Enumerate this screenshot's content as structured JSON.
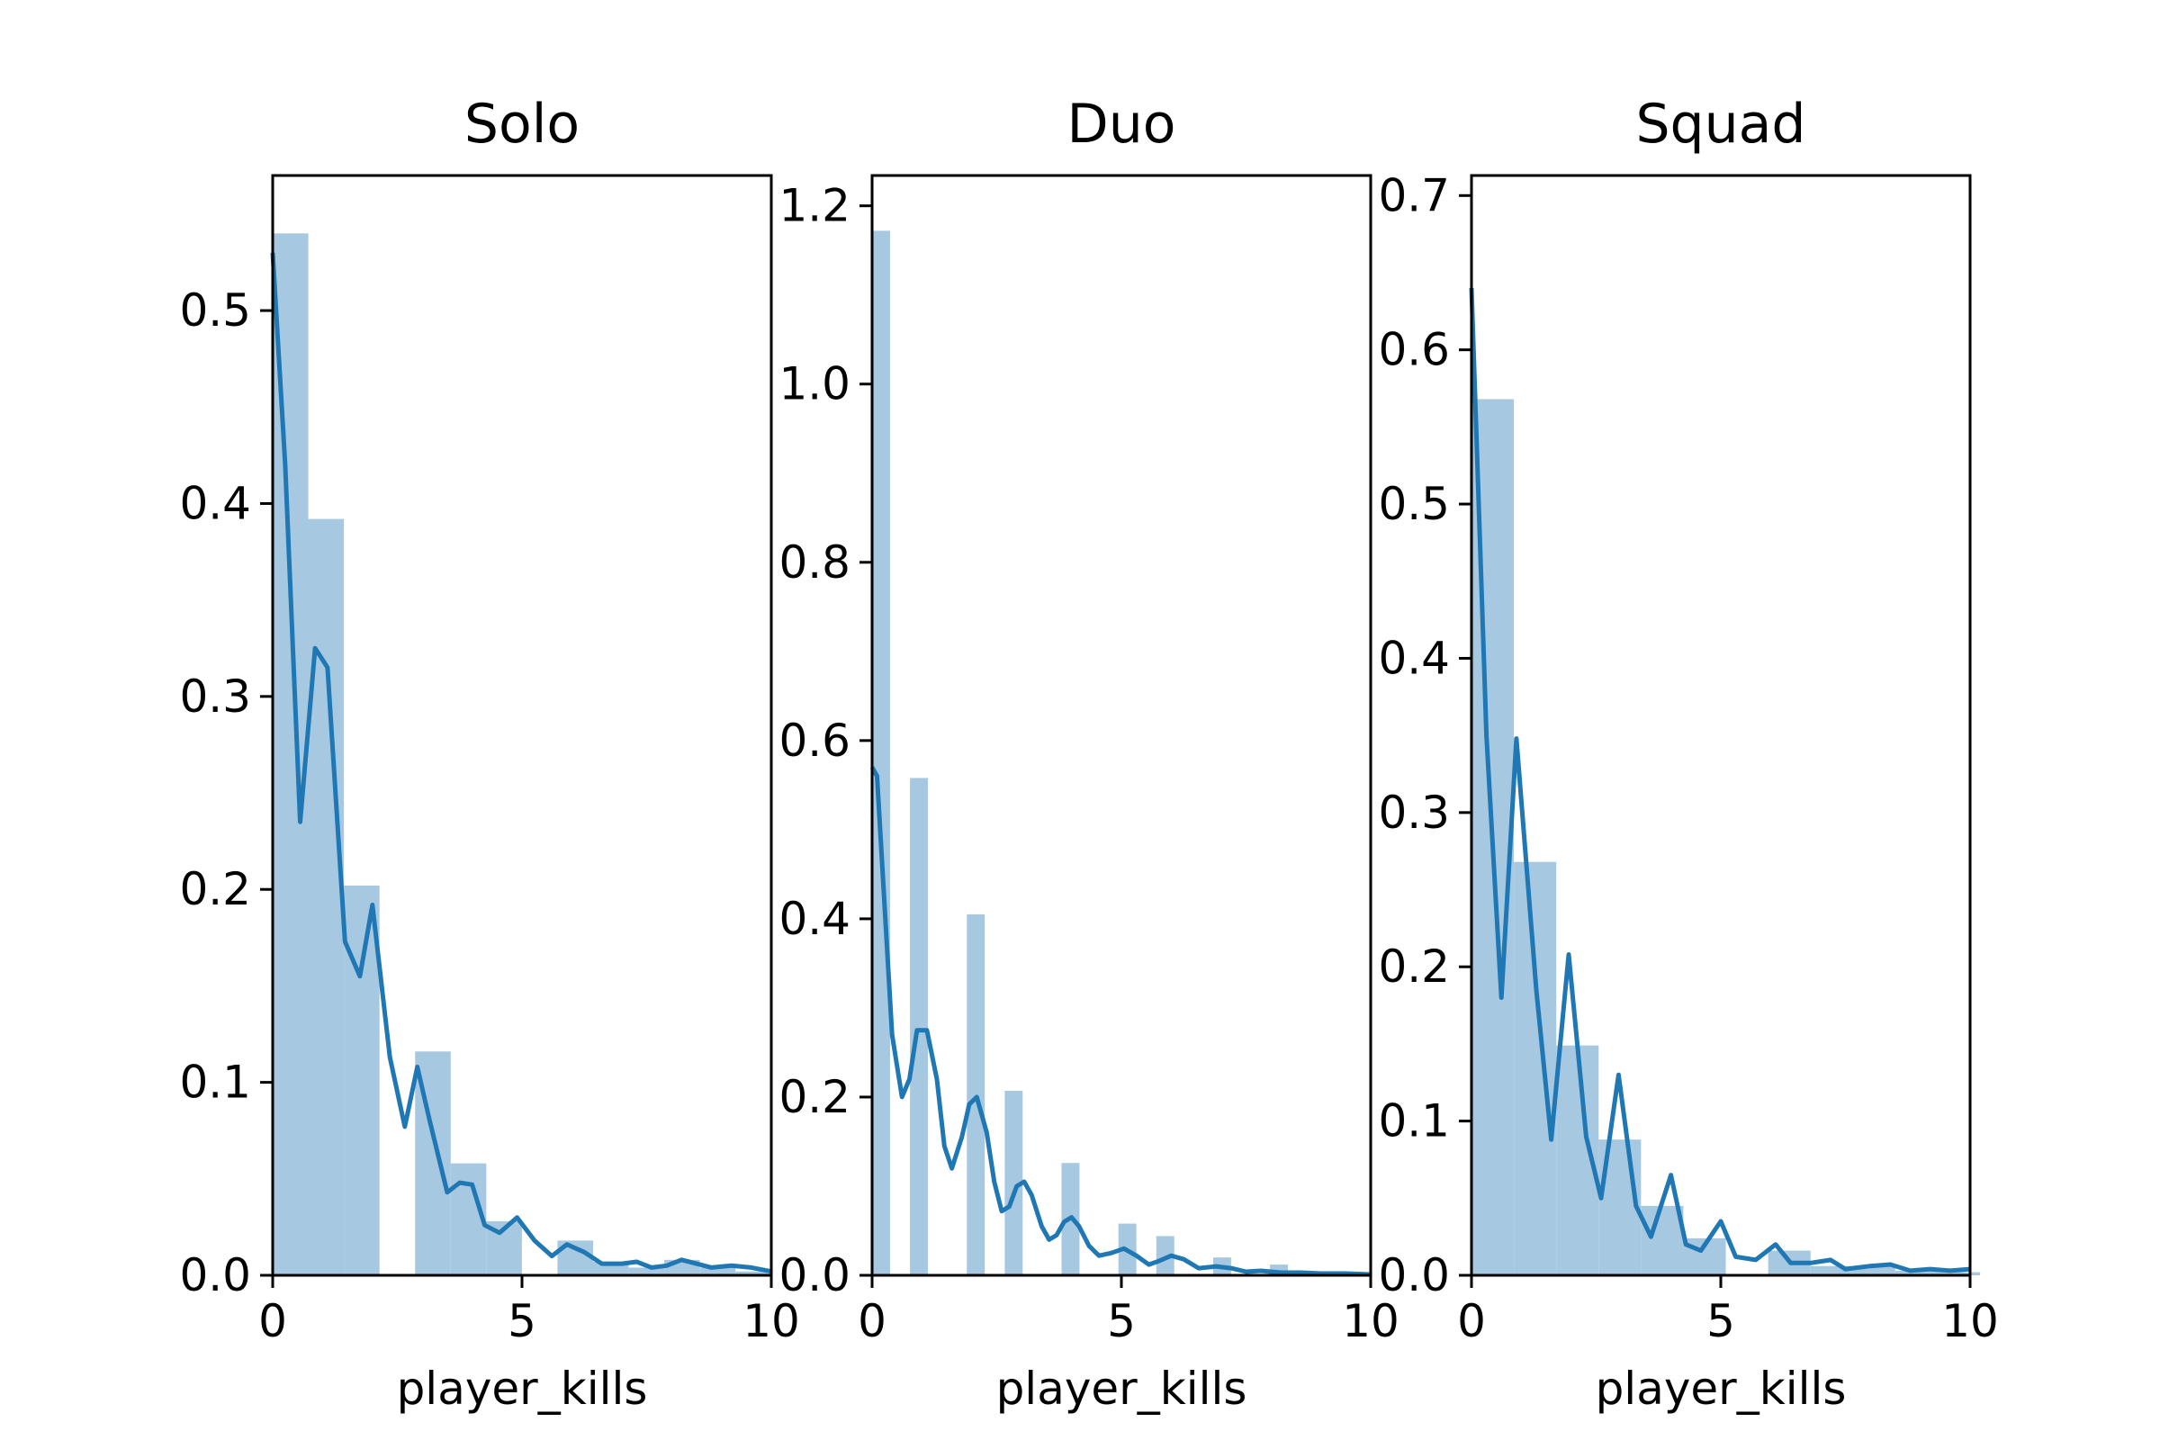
{
  "colors": {
    "hist_fill": "#a6c8e1",
    "kde_line": "#1f77b4",
    "axis": "#000000",
    "background": "#ffffff"
  },
  "chart_data": [
    {
      "type": "bar",
      "title": "Solo",
      "xlabel": "player_kills",
      "ylabel": "",
      "xlim": [
        0,
        10
      ],
      "ylim": [
        0,
        0.57
      ],
      "xticks": [
        0,
        5,
        10
      ],
      "xtick_labels": [
        "0",
        "5",
        "10"
      ],
      "yticks": [
        0.0,
        0.1,
        0.2,
        0.3,
        0.4,
        0.5
      ],
      "ytick_labels": [
        "0.0",
        "0.1",
        "0.2",
        "0.3",
        "0.4",
        "0.5"
      ],
      "grid": false,
      "bin_width": 0.714,
      "bars": [
        {
          "x": 0.0,
          "value": 0.54
        },
        {
          "x": 0.714,
          "value": 0.392
        },
        {
          "x": 1.428,
          "value": 0.202
        },
        {
          "x": 2.142,
          "value": 0.0
        },
        {
          "x": 2.856,
          "value": 0.116
        },
        {
          "x": 3.57,
          "value": 0.058
        },
        {
          "x": 4.284,
          "value": 0.028
        },
        {
          "x": 4.998,
          "value": 0.0
        },
        {
          "x": 5.712,
          "value": 0.018
        },
        {
          "x": 6.426,
          "value": 0.007
        },
        {
          "x": 7.14,
          "value": 0.004
        },
        {
          "x": 7.854,
          "value": 0.008
        },
        {
          "x": 8.568,
          "value": 0.004
        },
        {
          "x": 9.282,
          "value": 0.002
        }
      ],
      "kde": [
        [
          0.0,
          0.53
        ],
        [
          0.25,
          0.42
        ],
        [
          0.55,
          0.235
        ],
        [
          0.85,
          0.325
        ],
        [
          1.1,
          0.315
        ],
        [
          1.45,
          0.173
        ],
        [
          1.75,
          0.155
        ],
        [
          2.0,
          0.192
        ],
        [
          2.35,
          0.113
        ],
        [
          2.65,
          0.077
        ],
        [
          2.9,
          0.108
        ],
        [
          3.15,
          0.08
        ],
        [
          3.5,
          0.043
        ],
        [
          3.75,
          0.048
        ],
        [
          4.0,
          0.047
        ],
        [
          4.25,
          0.026
        ],
        [
          4.55,
          0.022
        ],
        [
          4.9,
          0.03
        ],
        [
          5.25,
          0.018
        ],
        [
          5.6,
          0.01
        ],
        [
          5.9,
          0.016
        ],
        [
          6.25,
          0.012
        ],
        [
          6.6,
          0.006
        ],
        [
          7.0,
          0.006
        ],
        [
          7.3,
          0.007
        ],
        [
          7.6,
          0.004
        ],
        [
          7.9,
          0.005
        ],
        [
          8.2,
          0.008
        ],
        [
          8.5,
          0.006
        ],
        [
          8.8,
          0.004
        ],
        [
          9.2,
          0.005
        ],
        [
          9.6,
          0.004
        ],
        [
          10.0,
          0.002
        ]
      ]
    },
    {
      "type": "bar",
      "title": "Duo",
      "xlabel": "player_kills",
      "ylabel": "",
      "xlim": [
        0,
        10
      ],
      "ylim": [
        0,
        1.234
      ],
      "xticks": [
        0,
        5,
        10
      ],
      "xtick_labels": [
        "0",
        "5",
        "10"
      ],
      "yticks": [
        0.0,
        0.2,
        0.4,
        0.6,
        0.8,
        1.0,
        1.2
      ],
      "ytick_labels": [
        "0.0",
        "0.2",
        "0.4",
        "0.6",
        "0.8",
        "1.0",
        "1.2"
      ],
      "grid": false,
      "bin_width": 0.36,
      "bars": [
        {
          "x": 0.0,
          "value": 1.172
        },
        {
          "x": 0.76,
          "value": 0.558
        },
        {
          "x": 1.9,
          "value": 0.405
        },
        {
          "x": 2.66,
          "value": 0.207
        },
        {
          "x": 3.8,
          "value": 0.126
        },
        {
          "x": 4.94,
          "value": 0.058
        },
        {
          "x": 5.7,
          "value": 0.044
        },
        {
          "x": 6.84,
          "value": 0.02
        },
        {
          "x": 7.98,
          "value": 0.012
        },
        {
          "x": 9.12,
          "value": 0.004
        }
      ],
      "kde": [
        [
          0.0,
          0.57
        ],
        [
          0.1,
          0.56
        ],
        [
          0.4,
          0.27
        ],
        [
          0.6,
          0.2
        ],
        [
          0.75,
          0.22
        ],
        [
          0.9,
          0.275
        ],
        [
          1.1,
          0.275
        ],
        [
          1.3,
          0.22
        ],
        [
          1.45,
          0.145
        ],
        [
          1.6,
          0.12
        ],
        [
          1.8,
          0.155
        ],
        [
          1.95,
          0.192
        ],
        [
          2.1,
          0.2
        ],
        [
          2.3,
          0.16
        ],
        [
          2.45,
          0.105
        ],
        [
          2.6,
          0.072
        ],
        [
          2.75,
          0.077
        ],
        [
          2.9,
          0.1
        ],
        [
          3.05,
          0.105
        ],
        [
          3.2,
          0.09
        ],
        [
          3.4,
          0.055
        ],
        [
          3.55,
          0.04
        ],
        [
          3.7,
          0.045
        ],
        [
          3.85,
          0.06
        ],
        [
          4.0,
          0.065
        ],
        [
          4.15,
          0.055
        ],
        [
          4.35,
          0.033
        ],
        [
          4.55,
          0.022
        ],
        [
          4.8,
          0.025
        ],
        [
          5.05,
          0.03
        ],
        [
          5.3,
          0.022
        ],
        [
          5.55,
          0.012
        ],
        [
          5.75,
          0.016
        ],
        [
          6.0,
          0.022
        ],
        [
          6.25,
          0.018
        ],
        [
          6.55,
          0.008
        ],
        [
          6.9,
          0.01
        ],
        [
          7.2,
          0.008
        ],
        [
          7.5,
          0.004
        ],
        [
          7.8,
          0.005
        ],
        [
          8.2,
          0.003
        ],
        [
          8.6,
          0.003
        ],
        [
          9.0,
          0.002
        ],
        [
          9.5,
          0.002
        ],
        [
          10.0,
          0.001
        ]
      ]
    },
    {
      "type": "bar",
      "title": "Squad",
      "xlabel": "player_kills",
      "ylabel": "",
      "xlim": [
        0,
        10
      ],
      "ylim": [
        0,
        0.713
      ],
      "xticks": [
        0,
        5,
        10
      ],
      "xtick_labels": [
        "0",
        "5",
        "10"
      ],
      "yticks": [
        0.0,
        0.1,
        0.2,
        0.3,
        0.4,
        0.5,
        0.6,
        0.7
      ],
      "ytick_labels": [
        "0.0",
        "0.1",
        "0.2",
        "0.3",
        "0.4",
        "0.5",
        "0.6",
        "0.7"
      ],
      "grid": false,
      "bin_width": 0.85,
      "bars": [
        {
          "x": 0.0,
          "value": 0.568
        },
        {
          "x": 0.85,
          "value": 0.268
        },
        {
          "x": 1.7,
          "value": 0.149
        },
        {
          "x": 2.55,
          "value": 0.088
        },
        {
          "x": 3.4,
          "value": 0.045
        },
        {
          "x": 4.25,
          "value": 0.024
        },
        {
          "x": 5.1,
          "value": 0.0
        },
        {
          "x": 5.95,
          "value": 0.016
        },
        {
          "x": 6.8,
          "value": 0.006
        },
        {
          "x": 7.65,
          "value": 0.006
        },
        {
          "x": 8.5,
          "value": 0.003
        },
        {
          "x": 9.35,
          "value": 0.002
        }
      ],
      "kde": [
        [
          0.0,
          0.64
        ],
        [
          0.3,
          0.35
        ],
        [
          0.6,
          0.18
        ],
        [
          0.9,
          0.348
        ],
        [
          1.3,
          0.185
        ],
        [
          1.6,
          0.088
        ],
        [
          1.95,
          0.208
        ],
        [
          2.3,
          0.09
        ],
        [
          2.6,
          0.05
        ],
        [
          2.95,
          0.13
        ],
        [
          3.3,
          0.045
        ],
        [
          3.6,
          0.025
        ],
        [
          4.0,
          0.065
        ],
        [
          4.3,
          0.02
        ],
        [
          4.6,
          0.016
        ],
        [
          5.0,
          0.035
        ],
        [
          5.3,
          0.012
        ],
        [
          5.7,
          0.01
        ],
        [
          6.1,
          0.02
        ],
        [
          6.4,
          0.008
        ],
        [
          6.8,
          0.008
        ],
        [
          7.2,
          0.01
        ],
        [
          7.5,
          0.004
        ],
        [
          8.0,
          0.006
        ],
        [
          8.4,
          0.007
        ],
        [
          8.8,
          0.003
        ],
        [
          9.2,
          0.004
        ],
        [
          9.6,
          0.003
        ],
        [
          10.0,
          0.004
        ]
      ]
    }
  ]
}
